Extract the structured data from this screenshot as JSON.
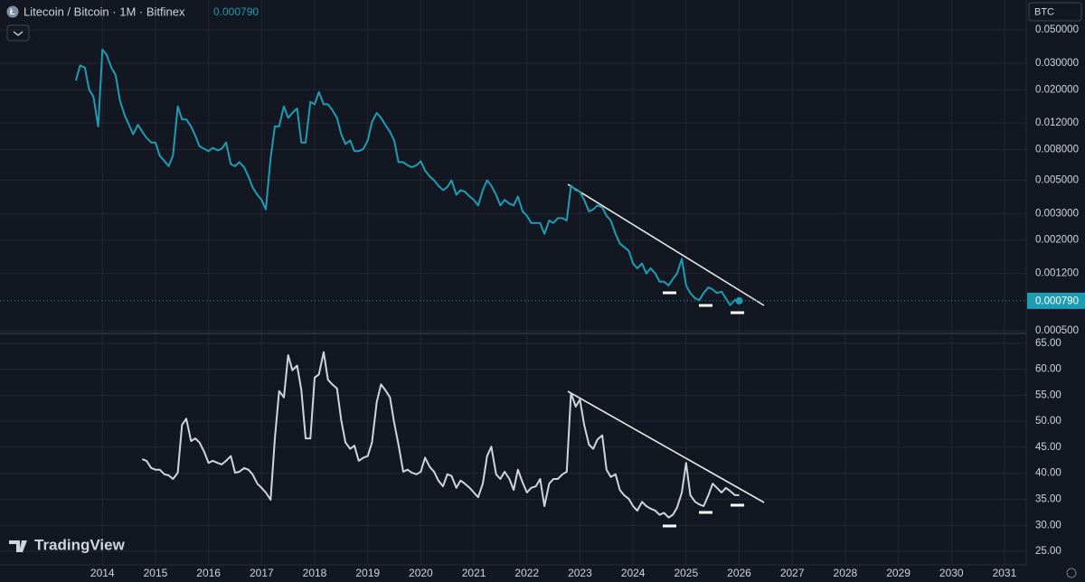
{
  "header": {
    "symbol": "Litecoin / Bitcoin · 1M · Bitfinex",
    "currency": "BTC"
  },
  "brand": "TradingView",
  "chart_data": [
    {
      "type": "line",
      "log_scale": true,
      "grid": true,
      "color": "#1e9cb3",
      "last_value_label": "0.000790",
      "xlim": [
        2012.07,
        2031.41
      ],
      "xticks": [
        2014,
        2015,
        2016,
        2017,
        2018,
        2019,
        2020,
        2021,
        2022,
        2023,
        2024,
        2025,
        2026,
        2027,
        2028,
        2029,
        2030,
        2031
      ],
      "ylim": [
        0.000486,
        0.0789
      ],
      "yticks": [
        {
          "value": 0.05,
          "label": "0.050000"
        },
        {
          "value": 0.03,
          "label": "0.030000"
        },
        {
          "value": 0.02,
          "label": "0.020000"
        },
        {
          "value": 0.012,
          "label": "0.012000"
        },
        {
          "value": 0.008,
          "label": "0.008000"
        },
        {
          "value": 0.005,
          "label": "0.005000"
        },
        {
          "value": 0.003,
          "label": "0.003000"
        },
        {
          "value": 0.002,
          "label": "0.002000"
        },
        {
          "value": 0.0012,
          "label": "0.001200"
        },
        {
          "value": 0.0005,
          "label": "0.000500"
        }
      ],
      "x": [
        2013.5,
        2013.58,
        2013.67,
        2013.75,
        2013.83,
        2013.92,
        2014,
        2014.08,
        2014.17,
        2014.25,
        2014.33,
        2014.42,
        2014.5,
        2014.58,
        2014.67,
        2014.75,
        2014.83,
        2014.92,
        2015,
        2015.08,
        2015.17,
        2015.25,
        2015.33,
        2015.42,
        2015.5,
        2015.58,
        2015.67,
        2015.75,
        2015.83,
        2015.92,
        2016,
        2016.08,
        2016.17,
        2016.25,
        2016.33,
        2016.42,
        2016.5,
        2016.58,
        2016.67,
        2016.75,
        2016.83,
        2016.92,
        2017,
        2017.08,
        2017.17,
        2017.25,
        2017.33,
        2017.42,
        2017.5,
        2017.58,
        2017.67,
        2017.75,
        2017.83,
        2017.92,
        2018,
        2018.08,
        2018.17,
        2018.25,
        2018.33,
        2018.42,
        2018.5,
        2018.58,
        2018.67,
        2018.75,
        2018.83,
        2018.92,
        2019,
        2019.08,
        2019.17,
        2019.25,
        2019.33,
        2019.42,
        2019.5,
        2019.58,
        2019.67,
        2019.75,
        2019.83,
        2019.92,
        2020,
        2020.08,
        2020.17,
        2020.25,
        2020.33,
        2020.42,
        2020.5,
        2020.58,
        2020.67,
        2020.75,
        2020.83,
        2020.92,
        2021,
        2021.08,
        2021.17,
        2021.25,
        2021.33,
        2021.42,
        2021.5,
        2021.58,
        2021.67,
        2021.75,
        2021.83,
        2021.92,
        2022,
        2022.08,
        2022.17,
        2022.25,
        2022.33,
        2022.42,
        2022.5,
        2022.58,
        2022.67,
        2022.75,
        2022.83,
        2022.92,
        2023,
        2023.08,
        2023.17,
        2023.25,
        2023.33,
        2023.42,
        2023.5,
        2023.58,
        2023.67,
        2023.75,
        2023.83,
        2023.92,
        2024,
        2024.08,
        2024.17,
        2024.25,
        2024.33,
        2024.42,
        2024.5,
        2024.58,
        2024.67,
        2024.75,
        2024.83,
        2024.92,
        2025,
        2025.08,
        2025.17,
        2025.25,
        2025.33,
        2025.42,
        2025.5,
        2025.58,
        2025.67,
        2025.75,
        2025.83,
        2025.92,
        2026
      ],
      "values": [
        0.023,
        0.029,
        0.028,
        0.02,
        0.018,
        0.0114,
        0.037,
        0.034,
        0.028,
        0.025,
        0.017,
        0.0135,
        0.0117,
        0.0101,
        0.0117,
        0.0105,
        0.0096,
        0.0089,
        0.0089,
        0.0073,
        0.0067,
        0.0062,
        0.0073,
        0.0155,
        0.0127,
        0.0127,
        0.0114,
        0.0099,
        0.0084,
        0.0081,
        0.0078,
        0.0082,
        0.0079,
        0.0081,
        0.0089,
        0.0064,
        0.0062,
        0.0066,
        0.0061,
        0.0053,
        0.0045,
        0.004,
        0.0037,
        0.0032,
        0.007,
        0.0114,
        0.0114,
        0.0155,
        0.013,
        0.014,
        0.015,
        0.0089,
        0.0089,
        0.0166,
        0.016,
        0.0193,
        0.016,
        0.016,
        0.0147,
        0.013,
        0.0101,
        0.0087,
        0.0092,
        0.0078,
        0.0078,
        0.0081,
        0.0092,
        0.0122,
        0.014,
        0.013,
        0.0117,
        0.0105,
        0.0092,
        0.0066,
        0.0066,
        0.0063,
        0.0061,
        0.0063,
        0.0067,
        0.0058,
        0.0053,
        0.005,
        0.0046,
        0.0043,
        0.0045,
        0.005,
        0.004,
        0.0043,
        0.0042,
        0.0039,
        0.0037,
        0.0034,
        0.0043,
        0.005,
        0.0046,
        0.004,
        0.0034,
        0.0037,
        0.0035,
        0.0034,
        0.0039,
        0.0031,
        0.0029,
        0.0026,
        0.0026,
        0.0026,
        0.0022,
        0.0027,
        0.0026,
        0.0028,
        0.0028,
        0.0027,
        0.0046,
        0.0043,
        0.0042,
        0.0037,
        0.0031,
        0.0032,
        0.0034,
        0.0033,
        0.0029,
        0.0027,
        0.0022,
        0.0019,
        0.0018,
        0.0017,
        0.0014,
        0.0013,
        0.0014,
        0.0012,
        0.0013,
        0.0012,
        0.00106,
        0.00106,
        0.001,
        0.0011,
        0.0012,
        0.0015,
        0.001,
        0.00089,
        0.00082,
        0.0008,
        0.00089,
        0.00097,
        0.00094,
        0.00089,
        0.00091,
        0.00082,
        0.00074,
        0.0008,
        0.00079
      ]
    },
    {
      "type": "line",
      "grid": true,
      "color": "#d1d4dc",
      "ylim": [
        22.4,
        66.7
      ],
      "yticks": [
        {
          "value": 65,
          "label": "65.00"
        },
        {
          "value": 60,
          "label": "60.00"
        },
        {
          "value": 55,
          "label": "55.00"
        },
        {
          "value": 50,
          "label": "50.00"
        },
        {
          "value": 45,
          "label": "45.00"
        },
        {
          "value": 40,
          "label": "40.00"
        },
        {
          "value": 35,
          "label": "35.00"
        },
        {
          "value": 30,
          "label": "30.00"
        },
        {
          "value": 25,
          "label": "25.00"
        }
      ],
      "values": [
        null,
        null,
        null,
        null,
        null,
        null,
        null,
        null,
        null,
        null,
        null,
        null,
        null,
        null,
        null,
        42.7,
        42.4,
        41,
        40.7,
        40.7,
        39.8,
        39.6,
        38.9,
        40.1,
        49.3,
        50.5,
        46.2,
        46.7,
        45.9,
        44.1,
        42,
        42.4,
        42,
        41.7,
        42.4,
        43.3,
        40.1,
        40.3,
        41,
        40.7,
        39.8,
        38,
        37.2,
        36.3,
        34.9,
        46.7,
        55.8,
        54.6,
        62.7,
        59.8,
        60.7,
        56,
        46.7,
        46.7,
        58.4,
        59,
        63.3,
        58,
        57.1,
        56.3,
        50.2,
        45.9,
        44.7,
        45.3,
        42.4,
        43,
        43.3,
        45.9,
        53.7,
        57.1,
        56,
        54.6,
        49.7,
        45.5,
        40.3,
        40.7,
        40.1,
        39.8,
        40.3,
        43,
        41.2,
        40.3,
        38.6,
        37.5,
        39.8,
        39.5,
        37.2,
        38.6,
        38,
        37.2,
        36.3,
        35.4,
        38,
        43.3,
        45.1,
        39.8,
        38.9,
        40.3,
        38.9,
        36.8,
        40.7,
        38.2,
        36.3,
        37.2,
        37.5,
        38.9,
        33.7,
        38,
        38.9,
        38.9,
        39.8,
        40.3,
        55.4,
        52.8,
        54.2,
        49.3,
        45.5,
        44.7,
        46.5,
        47.3,
        40.7,
        39.3,
        39.8,
        36.8,
        35.8,
        35.1,
        33.7,
        32.8,
        34.5,
        33.7,
        33.2,
        32.8,
        32,
        32.4,
        31.5,
        32,
        33.4,
        36.3,
        42,
        35.8,
        34.5,
        34,
        33.7,
        35.8,
        38,
        37.2,
        36.3,
        37.2,
        36.6,
        35.8,
        35.8
      ]
    }
  ]
}
